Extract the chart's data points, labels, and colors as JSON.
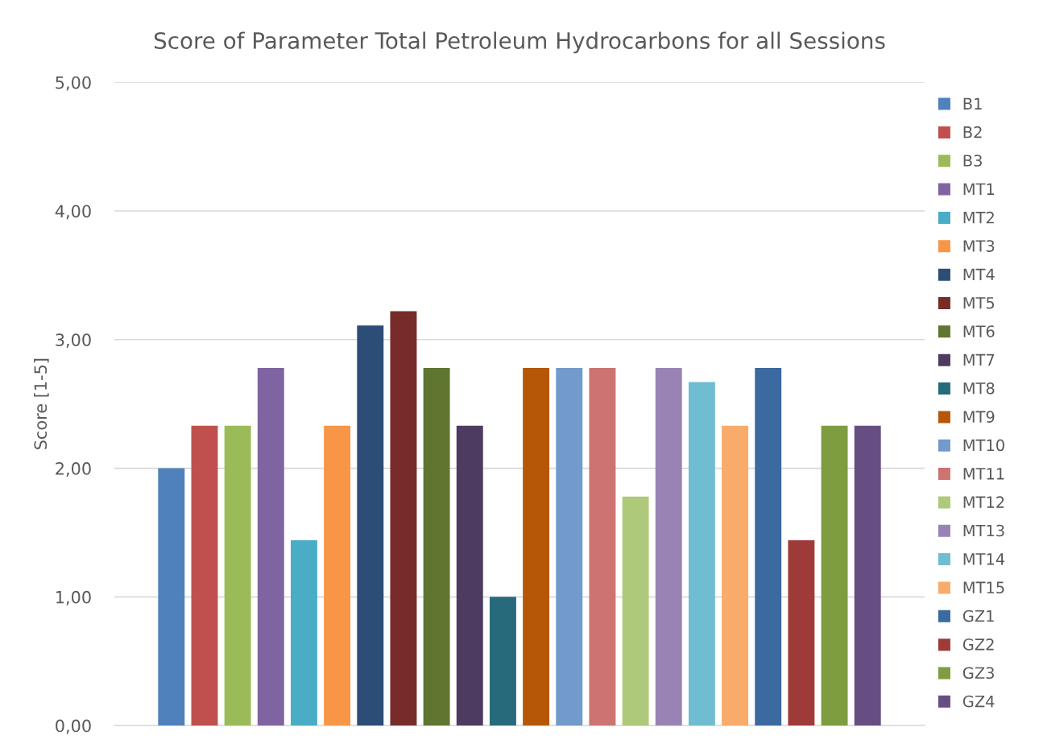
{
  "chart_data": {
    "type": "bar",
    "title": "Score of Parameter Total Petroleum Hydrocarbons for all Sessions",
    "ylabel": "Score [1-5]",
    "categories": [
      null
    ],
    "series": [
      {
        "name": "B1",
        "color": "#4f81bd",
        "values": [
          2.0
        ]
      },
      {
        "name": "B2",
        "color": "#c0504d",
        "values": [
          2.33
        ]
      },
      {
        "name": "B3",
        "color": "#9bbb59",
        "values": [
          2.33
        ]
      },
      {
        "name": "MT1",
        "color": "#8064a2",
        "values": [
          2.78
        ]
      },
      {
        "name": "MT2",
        "color": "#4bacc6",
        "values": [
          1.44
        ]
      },
      {
        "name": "MT3",
        "color": "#f79646",
        "values": [
          2.33
        ]
      },
      {
        "name": "MT4",
        "color": "#2c4d75",
        "values": [
          3.11
        ]
      },
      {
        "name": "MT5",
        "color": "#772c2a",
        "values": [
          3.22
        ]
      },
      {
        "name": "MT6",
        "color": "#5f7530",
        "values": [
          2.78
        ]
      },
      {
        "name": "MT7",
        "color": "#4d3b62",
        "values": [
          2.33
        ]
      },
      {
        "name": "MT8",
        "color": "#276a7c",
        "values": [
          1.0
        ]
      },
      {
        "name": "MT9",
        "color": "#b65708",
        "values": [
          2.78
        ]
      },
      {
        "name": "MT10",
        "color": "#729aca",
        "values": [
          2.78
        ]
      },
      {
        "name": "MT11",
        "color": "#cd7371",
        "values": [
          2.78
        ]
      },
      {
        "name": "MT12",
        "color": "#afc97a",
        "values": [
          1.78
        ]
      },
      {
        "name": "MT13",
        "color": "#9983b5",
        "values": [
          2.78
        ]
      },
      {
        "name": "MT14",
        "color": "#6fbdd1",
        "values": [
          2.67
        ]
      },
      {
        "name": "MT15",
        "color": "#f9ab6b",
        "values": [
          2.33
        ]
      },
      {
        "name": "GZ1",
        "color": "#3a6a9f",
        "values": [
          2.78
        ]
      },
      {
        "name": "GZ2",
        "color": "#9e3b39",
        "values": [
          1.44
        ]
      },
      {
        "name": "GZ3",
        "color": "#7e9c40",
        "values": [
          2.33
        ]
      },
      {
        "name": "GZ4",
        "color": "#664e83",
        "values": [
          2.33
        ]
      }
    ],
    "ylim": [
      0,
      5
    ],
    "yticks": [
      {
        "value": 0,
        "label": "0,00"
      },
      {
        "value": 1,
        "label": "1,00"
      },
      {
        "value": 2,
        "label": "2,00"
      },
      {
        "value": 3,
        "label": "3,00"
      },
      {
        "value": 4,
        "label": "4,00"
      },
      {
        "value": 5,
        "label": "5,00"
      }
    ],
    "grid": "y",
    "legend": "right"
  }
}
